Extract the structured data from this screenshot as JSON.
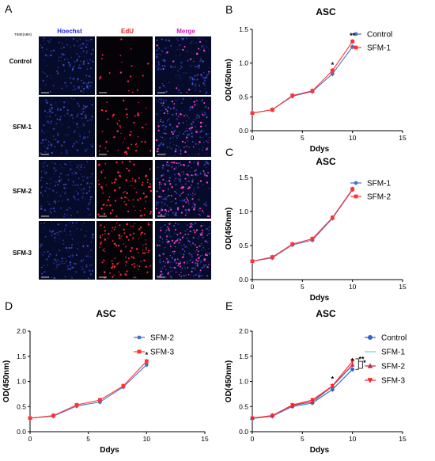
{
  "panel_a": {
    "label": "A",
    "time_label": "TIME(48H)",
    "columns": [
      {
        "name": "Hoechst",
        "color": "#2a2ae0"
      },
      {
        "name": "EdU",
        "color": "#e02020"
      },
      {
        "name": "Merge",
        "color": "#d020c0"
      }
    ],
    "rows": [
      "Control",
      "SFM-1",
      "SFM-2",
      "SFM-3"
    ]
  },
  "chart_data": [
    {
      "panel": "B",
      "type": "line",
      "title": "ASC",
      "xlabel": "Ddys",
      "ylabel": "OD(450nm)",
      "xlim": [
        0,
        15
      ],
      "ylim": [
        0,
        1.5
      ],
      "xticks": [
        0,
        5,
        10,
        15
      ],
      "yticks": [
        0.0,
        0.5,
        1.0,
        1.5
      ],
      "x": [
        0,
        2,
        4,
        6,
        8,
        10
      ],
      "series": [
        {
          "name": "Control",
          "color": "#4472c4",
          "marker": "circle",
          "values": [
            0.26,
            0.31,
            0.51,
            0.58,
            0.84,
            1.24
          ]
        },
        {
          "name": "SFM-1",
          "color": "#ff3333",
          "marker": "square",
          "values": [
            0.26,
            0.31,
            0.52,
            0.59,
            0.89,
            1.32
          ]
        }
      ],
      "annotations": [
        {
          "x": 8,
          "y": 0.94,
          "text": "*"
        },
        {
          "x": 10,
          "y": 1.37,
          "text": "**"
        }
      ]
    },
    {
      "panel": "C",
      "type": "line",
      "title": "ASC",
      "xlabel": "Ddys",
      "ylabel": "OD(450nm)",
      "xlim": [
        0,
        15
      ],
      "ylim": [
        0,
        1.5
      ],
      "xticks": [
        0,
        5,
        10,
        15
      ],
      "yticks": [
        0.0,
        0.5,
        1.0,
        1.5
      ],
      "x": [
        0,
        2,
        4,
        6,
        8,
        10
      ],
      "series": [
        {
          "name": "SFM-1",
          "color": "#4472c4",
          "marker": "circle",
          "values": [
            0.27,
            0.32,
            0.51,
            0.58,
            0.9,
            1.32
          ]
        },
        {
          "name": "SFM-2",
          "color": "#ff3333",
          "marker": "square",
          "values": [
            0.27,
            0.33,
            0.52,
            0.6,
            0.91,
            1.33
          ]
        }
      ],
      "annotations": []
    },
    {
      "panel": "D",
      "type": "line",
      "title": "ASC",
      "xlabel": "Ddys",
      "ylabel": "OD(450nm)",
      "xlim": [
        0,
        15
      ],
      "ylim": [
        0,
        2.0
      ],
      "xticks": [
        0,
        5,
        10,
        15
      ],
      "yticks": [
        0.0,
        0.5,
        1.0,
        1.5,
        2.0
      ],
      "x": [
        0,
        2,
        4,
        6,
        8,
        10
      ],
      "series": [
        {
          "name": "SFM-2",
          "color": "#4472c4",
          "marker": "circle",
          "values": [
            0.27,
            0.31,
            0.51,
            0.59,
            0.89,
            1.33
          ]
        },
        {
          "name": "SFM-3",
          "color": "#ff3333",
          "marker": "square",
          "values": [
            0.27,
            0.32,
            0.53,
            0.63,
            0.91,
            1.4
          ]
        }
      ],
      "annotations": [
        {
          "x": 10,
          "y": 1.48,
          "text": "*"
        }
      ]
    },
    {
      "panel": "E",
      "type": "line",
      "title": "ASC",
      "xlabel": "Ddys",
      "ylabel": "OD(450nm)",
      "xlim": [
        0,
        15
      ],
      "ylim": [
        0,
        2.0
      ],
      "xticks": [
        0,
        5,
        10,
        15
      ],
      "yticks": [
        0.0,
        0.5,
        1.0,
        1.5,
        2.0
      ],
      "x": [
        0,
        2,
        4,
        6,
        8,
        10
      ],
      "series": [
        {
          "name": "Control",
          "color": "#2f5fd0",
          "marker": "circle",
          "values": [
            0.26,
            0.31,
            0.5,
            0.57,
            0.84,
            1.24
          ]
        },
        {
          "name": "SFM-1",
          "color": "#5fd3e6",
          "marker": "none",
          "values": [
            0.26,
            0.32,
            0.51,
            0.58,
            0.9,
            1.31
          ]
        },
        {
          "name": "SFM-2",
          "color": "#c0305a",
          "marker": "triangle-up",
          "values": [
            0.27,
            0.32,
            0.52,
            0.6,
            0.91,
            1.33
          ]
        },
        {
          "name": "SFM-3",
          "color": "#ff2020",
          "marker": "triangle-down",
          "values": [
            0.27,
            0.32,
            0.53,
            0.63,
            0.91,
            1.4
          ]
        }
      ],
      "annotations": [
        {
          "x": 8,
          "y": 1.0,
          "text": "*"
        },
        {
          "x": 10,
          "y": 1.36,
          "text": "*"
        },
        {
          "x": 10.9,
          "y": 1.39,
          "text": "**"
        },
        {
          "x": 11.2,
          "y": 1.32,
          "text": "*"
        }
      ]
    }
  ]
}
